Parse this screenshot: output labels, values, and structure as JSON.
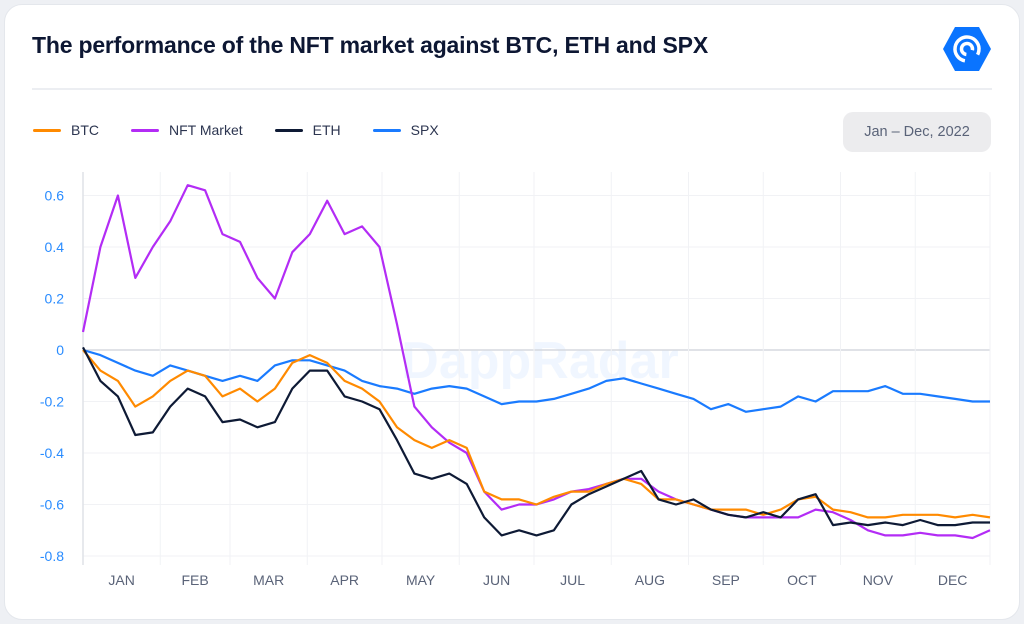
{
  "header": {
    "title": "The performance of the NFT market against BTC, ETH and SPX",
    "logo": "dappradar-logo",
    "watermark": "DappRadar"
  },
  "date_range": "Jan – Dec, 2022",
  "colors": {
    "BTC": "#ff8a00",
    "NFT Market": "#b32cf5",
    "ETH": "#0e1a35",
    "SPX": "#1a7bff",
    "axis_text": "#2a8cff",
    "month_text": "#5a6378"
  },
  "chart_data": {
    "type": "line",
    "title": "The performance of the NFT market against BTC, ETH and SPX",
    "xlim": [
      "2022-01-01",
      "2022-12-31"
    ],
    "ylim": [
      -0.8,
      0.7
    ],
    "yticks": [
      0.6,
      0.4,
      0.2,
      0,
      -0.2,
      -0.4,
      -0.6,
      -0.8
    ],
    "ytick_labels": [
      "0.6",
      "0.4",
      "0.2",
      "0",
      "-0.2",
      "-0.4",
      "-0.6",
      "-0.8"
    ],
    "xtick_labels": [
      "JAN",
      "FEB",
      "MAR",
      "APR",
      "MAY",
      "JUN",
      "JUL",
      "AUG",
      "SEP",
      "OCT",
      "NOV",
      "DEC"
    ],
    "grid": true,
    "legend": "top-left",
    "x": [
      "2022-01-01",
      "2022-01-08",
      "2022-01-15",
      "2022-01-22",
      "2022-01-29",
      "2022-02-05",
      "2022-02-12",
      "2022-02-19",
      "2022-02-26",
      "2022-03-05",
      "2022-03-12",
      "2022-03-19",
      "2022-03-26",
      "2022-04-02",
      "2022-04-09",
      "2022-04-16",
      "2022-04-23",
      "2022-04-30",
      "2022-05-07",
      "2022-05-14",
      "2022-05-21",
      "2022-05-28",
      "2022-06-04",
      "2022-06-11",
      "2022-06-18",
      "2022-06-25",
      "2022-07-02",
      "2022-07-09",
      "2022-07-16",
      "2022-07-23",
      "2022-07-30",
      "2022-08-06",
      "2022-08-13",
      "2022-08-20",
      "2022-08-27",
      "2022-09-03",
      "2022-09-10",
      "2022-09-17",
      "2022-09-24",
      "2022-10-01",
      "2022-10-08",
      "2022-10-15",
      "2022-10-22",
      "2022-10-29",
      "2022-11-05",
      "2022-11-12",
      "2022-11-19",
      "2022-11-26",
      "2022-12-03",
      "2022-12-10",
      "2022-12-17",
      "2022-12-24",
      "2022-12-31"
    ],
    "series": [
      {
        "name": "BTC",
        "values": [
          0,
          -0.08,
          -0.12,
          -0.22,
          -0.18,
          -0.12,
          -0.08,
          -0.1,
          -0.18,
          -0.15,
          -0.2,
          -0.15,
          -0.05,
          -0.02,
          -0.05,
          -0.12,
          -0.15,
          -0.2,
          -0.3,
          -0.35,
          -0.38,
          -0.35,
          -0.38,
          -0.55,
          -0.58,
          -0.58,
          -0.6,
          -0.57,
          -0.55,
          -0.55,
          -0.52,
          -0.5,
          -0.52,
          -0.58,
          -0.58,
          -0.6,
          -0.62,
          -0.62,
          -0.62,
          -0.64,
          -0.62,
          -0.58,
          -0.57,
          -0.62,
          -0.63,
          -0.65,
          -0.65,
          -0.64,
          -0.64,
          -0.64,
          -0.65,
          -0.64,
          -0.65
        ]
      },
      {
        "name": "NFT Market",
        "values": [
          0.07,
          0.4,
          0.6,
          0.28,
          0.4,
          0.5,
          0.64,
          0.62,
          0.45,
          0.42,
          0.28,
          0.2,
          0.38,
          0.45,
          0.58,
          0.45,
          0.48,
          0.4,
          0.1,
          -0.22,
          -0.3,
          -0.36,
          -0.4,
          -0.55,
          -0.62,
          -0.6,
          -0.6,
          -0.58,
          -0.55,
          -0.54,
          -0.52,
          -0.5,
          -0.5,
          -0.55,
          -0.58,
          -0.6,
          -0.62,
          -0.64,
          -0.65,
          -0.65,
          -0.65,
          -0.65,
          -0.62,
          -0.63,
          -0.66,
          -0.7,
          -0.72,
          -0.72,
          -0.71,
          -0.72,
          -0.72,
          -0.73,
          -0.7
        ]
      },
      {
        "name": "ETH",
        "values": [
          0.01,
          -0.12,
          -0.18,
          -0.33,
          -0.32,
          -0.22,
          -0.15,
          -0.18,
          -0.28,
          -0.27,
          -0.3,
          -0.28,
          -0.15,
          -0.08,
          -0.08,
          -0.18,
          -0.2,
          -0.23,
          -0.35,
          -0.48,
          -0.5,
          -0.48,
          -0.52,
          -0.65,
          -0.72,
          -0.7,
          -0.72,
          -0.7,
          -0.6,
          -0.56,
          -0.53,
          -0.5,
          -0.47,
          -0.58,
          -0.6,
          -0.58,
          -0.62,
          -0.64,
          -0.65,
          -0.63,
          -0.65,
          -0.58,
          -0.56,
          -0.68,
          -0.67,
          -0.68,
          -0.67,
          -0.68,
          -0.66,
          -0.68,
          -0.68,
          -0.67,
          -0.67
        ]
      },
      {
        "name": "SPX",
        "values": [
          0,
          -0.02,
          -0.05,
          -0.08,
          -0.1,
          -0.06,
          -0.08,
          -0.1,
          -0.12,
          -0.1,
          -0.12,
          -0.06,
          -0.04,
          -0.04,
          -0.06,
          -0.08,
          -0.12,
          -0.14,
          -0.15,
          -0.17,
          -0.15,
          -0.14,
          -0.15,
          -0.18,
          -0.21,
          -0.2,
          -0.2,
          -0.19,
          -0.17,
          -0.15,
          -0.12,
          -0.11,
          -0.13,
          -0.15,
          -0.17,
          -0.19,
          -0.23,
          -0.21,
          -0.24,
          -0.23,
          -0.22,
          -0.18,
          -0.2,
          -0.16,
          -0.16,
          -0.16,
          -0.14,
          -0.17,
          -0.17,
          -0.18,
          -0.19,
          -0.2,
          -0.2
        ]
      }
    ]
  }
}
